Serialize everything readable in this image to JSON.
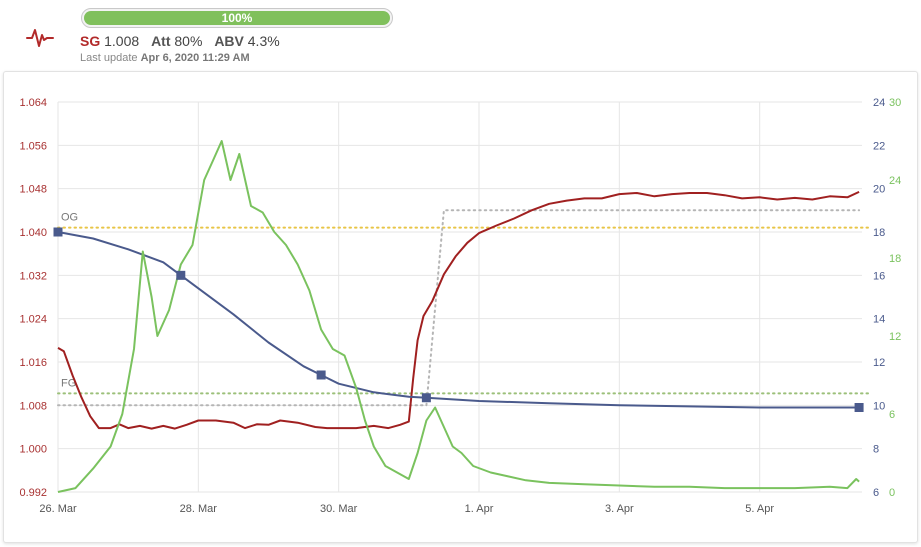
{
  "header": {
    "progress": {
      "label": "100%",
      "value": 1.0,
      "color": "#80c05c"
    },
    "sg": {
      "label": "SG",
      "value": "1.008"
    },
    "att": {
      "label": "Att",
      "value": "80%"
    },
    "abv": {
      "label": "ABV",
      "value": "4.3%"
    },
    "last_update_label": "Last update",
    "last_update_value": "Apr 6, 2020 11:29 AM",
    "logo_icon": "heartbeat-icon"
  },
  "chart_data": {
    "type": "line",
    "x_domain": [
      "2020-03-26T00:00",
      "2020-04-06T11:00"
    ],
    "x_ticks": [
      {
        "date": "2020-03-26",
        "label": "26. Mar"
      },
      {
        "date": "2020-03-28",
        "label": "28. Mar"
      },
      {
        "date": "2020-03-30",
        "label": "30. Mar"
      },
      {
        "date": "2020-04-01",
        "label": "1. Apr"
      },
      {
        "date": "2020-04-03",
        "label": "3. Apr"
      },
      {
        "date": "2020-04-05",
        "label": "5. Apr"
      }
    ],
    "axes": {
      "sg": {
        "side": "left",
        "ylim": [
          0.992,
          1.064
        ],
        "ticks": [
          "0.992",
          "1.000",
          "1.008",
          "1.016",
          "1.024",
          "1.032",
          "1.040",
          "1.048",
          "1.056",
          "1.064"
        ],
        "color": "#a83232"
      },
      "temp": {
        "side": "right",
        "ylim": [
          6,
          24
        ],
        "ticks": [
          "6",
          "8",
          "10",
          "12",
          "14",
          "16",
          "18",
          "20",
          "22",
          "24"
        ],
        "color": "#4a5a8c"
      },
      "green": {
        "side": "right-outer",
        "ylim": [
          0,
          30
        ],
        "ticks": [
          "0",
          "6",
          "12",
          "18",
          "24",
          "30"
        ],
        "color": "#7ac25e"
      }
    },
    "grid": true,
    "reference_lines": [
      {
        "label": "OG",
        "axis": "sg",
        "value": 1.0408,
        "color": "#e8c547",
        "style": "dotted"
      },
      {
        "label": "FG",
        "axis": "sg",
        "value": 1.0102,
        "color": "#9cc07a",
        "style": "dotted"
      }
    ],
    "series": [
      {
        "axis": "sg",
        "color": "#a02020",
        "points": [
          [
            "2020-03-26T00:00",
            1.0186
          ],
          [
            "2020-03-26T02:00",
            1.018
          ],
          [
            "2020-03-26T05:00",
            1.0135
          ],
          [
            "2020-03-26T08:00",
            1.0095
          ],
          [
            "2020-03-26T11:00",
            1.006
          ],
          [
            "2020-03-26T14:00",
            1.0038
          ],
          [
            "2020-03-26T18:00",
            1.0038
          ],
          [
            "2020-03-26T21:00",
            1.0045
          ],
          [
            "2020-03-27T00:00",
            1.0038
          ],
          [
            "2020-03-27T04:00",
            1.0042
          ],
          [
            "2020-03-27T08:00",
            1.0037
          ],
          [
            "2020-03-27T12:00",
            1.0042
          ],
          [
            "2020-03-27T16:00",
            1.0037
          ],
          [
            "2020-03-27T20:00",
            1.0044
          ],
          [
            "2020-03-28T00:00",
            1.0052
          ],
          [
            "2020-03-28T06:00",
            1.0052
          ],
          [
            "2020-03-28T12:00",
            1.0048
          ],
          [
            "2020-03-28T16:00",
            1.0038
          ],
          [
            "2020-03-28T20:00",
            1.0045
          ],
          [
            "2020-03-29T00:00",
            1.0044
          ],
          [
            "2020-03-29T04:00",
            1.0052
          ],
          [
            "2020-03-29T10:00",
            1.0048
          ],
          [
            "2020-03-29T16:00",
            1.004
          ],
          [
            "2020-03-29T20:00",
            1.0038
          ],
          [
            "2020-03-30T00:00",
            1.0038
          ],
          [
            "2020-03-30T06:00",
            1.0038
          ],
          [
            "2020-03-30T12:00",
            1.0042
          ],
          [
            "2020-03-30T17:00",
            1.0038
          ],
          [
            "2020-03-30T21:00",
            1.0044
          ],
          [
            "2020-03-31T00:00",
            1.005
          ],
          [
            "2020-03-31T01:30",
            1.013
          ],
          [
            "2020-03-31T03:00",
            1.02
          ],
          [
            "2020-03-31T05:00",
            1.0245
          ],
          [
            "2020-03-31T08:00",
            1.0272
          ],
          [
            "2020-03-31T12:00",
            1.0322
          ],
          [
            "2020-03-31T16:00",
            1.0355
          ],
          [
            "2020-03-31T20:00",
            1.038
          ],
          [
            "2020-04-01T00:00",
            1.0398
          ],
          [
            "2020-04-01T06:00",
            1.0412
          ],
          [
            "2020-04-01T12:00",
            1.0425
          ],
          [
            "2020-04-01T18:00",
            1.044
          ],
          [
            "2020-04-02T00:00",
            1.0452
          ],
          [
            "2020-04-02T06:00",
            1.0458
          ],
          [
            "2020-04-02T12:00",
            1.0462
          ],
          [
            "2020-04-02T18:00",
            1.0462
          ],
          [
            "2020-04-03T00:00",
            1.047
          ],
          [
            "2020-04-03T06:00",
            1.0472
          ],
          [
            "2020-04-03T12:00",
            1.0466
          ],
          [
            "2020-04-03T18:00",
            1.047
          ],
          [
            "2020-04-04T00:00",
            1.0472
          ],
          [
            "2020-04-04T06:00",
            1.0472
          ],
          [
            "2020-04-04T12:00",
            1.0468
          ],
          [
            "2020-04-04T18:00",
            1.0462
          ],
          [
            "2020-04-05T00:00",
            1.0464
          ],
          [
            "2020-04-05T06:00",
            1.046
          ],
          [
            "2020-04-05T12:00",
            1.0463
          ],
          [
            "2020-04-05T18:00",
            1.046
          ],
          [
            "2020-04-06T00:00",
            1.0466
          ],
          [
            "2020-04-06T06:00",
            1.0464
          ],
          [
            "2020-04-06T10:00",
            1.0474
          ]
        ]
      },
      {
        "axis": "temp",
        "color": "#4a5a8c",
        "points": [
          [
            "2020-03-26T00:00",
            18.0
          ],
          [
            "2020-03-26T12:00",
            17.7
          ],
          [
            "2020-03-27T00:00",
            17.2
          ],
          [
            "2020-03-27T12:00",
            16.6
          ],
          [
            "2020-03-27T18:00",
            16.0
          ],
          [
            "2020-03-28T00:00",
            15.4
          ],
          [
            "2020-03-28T12:00",
            14.2
          ],
          [
            "2020-03-29T00:00",
            12.9
          ],
          [
            "2020-03-29T12:00",
            11.8
          ],
          [
            "2020-03-29T18:00",
            11.4
          ],
          [
            "2020-03-30T00:00",
            11.0
          ],
          [
            "2020-03-30T12:00",
            10.6
          ],
          [
            "2020-03-31T00:00",
            10.4
          ],
          [
            "2020-03-31T06:00",
            10.35
          ],
          [
            "2020-04-01T00:00",
            10.2
          ],
          [
            "2020-04-02T00:00",
            10.1
          ],
          [
            "2020-04-03T00:00",
            10.0
          ],
          [
            "2020-04-04T00:00",
            9.95
          ],
          [
            "2020-04-05T00:00",
            9.9
          ],
          [
            "2020-04-06T10:00",
            9.9
          ]
        ],
        "markers": [
          [
            "2020-03-26T00:00",
            18.0
          ],
          [
            "2020-03-27T18:00",
            16.0
          ],
          [
            "2020-03-29T18:00",
            11.4
          ],
          [
            "2020-03-31T06:00",
            10.35
          ],
          [
            "2020-04-06T10:00",
            9.9
          ]
        ]
      },
      {
        "axis": "green",
        "color": "#7ac25e",
        "points": [
          [
            "2020-03-26T00:00",
            0.0
          ],
          [
            "2020-03-26T06:00",
            0.3
          ],
          [
            "2020-03-26T12:00",
            1.8
          ],
          [
            "2020-03-26T18:00",
            3.5
          ],
          [
            "2020-03-26T22:00",
            6.0
          ],
          [
            "2020-03-27T02:00",
            11.0
          ],
          [
            "2020-03-27T05:00",
            18.5
          ],
          [
            "2020-03-27T08:00",
            15.0
          ],
          [
            "2020-03-27T10:00",
            12.0
          ],
          [
            "2020-03-27T14:00",
            14.0
          ],
          [
            "2020-03-27T18:00",
            17.5
          ],
          [
            "2020-03-27T22:00",
            19.0
          ],
          [
            "2020-03-28T02:00",
            24.0
          ],
          [
            "2020-03-28T05:00",
            25.5
          ],
          [
            "2020-03-28T08:00",
            27.0
          ],
          [
            "2020-03-28T11:00",
            24.0
          ],
          [
            "2020-03-28T14:00",
            26.0
          ],
          [
            "2020-03-28T18:00",
            22.0
          ],
          [
            "2020-03-28T22:00",
            21.5
          ],
          [
            "2020-03-29T02:00",
            20.0
          ],
          [
            "2020-03-29T06:00",
            19.0
          ],
          [
            "2020-03-29T10:00",
            17.5
          ],
          [
            "2020-03-29T14:00",
            15.5
          ],
          [
            "2020-03-29T18:00",
            12.5
          ],
          [
            "2020-03-29T22:00",
            11.0
          ],
          [
            "2020-03-30T02:00",
            10.5
          ],
          [
            "2020-03-30T06:00",
            8.0
          ],
          [
            "2020-03-30T09:00",
            5.5
          ],
          [
            "2020-03-30T12:00",
            3.5
          ],
          [
            "2020-03-30T16:00",
            2.0
          ],
          [
            "2020-03-30T20:00",
            1.5
          ],
          [
            "2020-03-31T00:00",
            1.0
          ],
          [
            "2020-03-31T03:00",
            3.0
          ],
          [
            "2020-03-31T06:00",
            5.5
          ],
          [
            "2020-03-31T09:00",
            6.5
          ],
          [
            "2020-03-31T12:00",
            5.0
          ],
          [
            "2020-03-31T15:00",
            3.5
          ],
          [
            "2020-03-31T18:00",
            3.0
          ],
          [
            "2020-03-31T22:00",
            2.0
          ],
          [
            "2020-04-01T04:00",
            1.5
          ],
          [
            "2020-04-01T10:00",
            1.2
          ],
          [
            "2020-04-01T16:00",
            0.9
          ],
          [
            "2020-04-02T00:00",
            0.7
          ],
          [
            "2020-04-02T12:00",
            0.6
          ],
          [
            "2020-04-03T00:00",
            0.5
          ],
          [
            "2020-04-03T12:00",
            0.4
          ],
          [
            "2020-04-04T00:00",
            0.4
          ],
          [
            "2020-04-04T12:00",
            0.3
          ],
          [
            "2020-04-05T00:00",
            0.3
          ],
          [
            "2020-04-05T12:00",
            0.3
          ],
          [
            "2020-04-06T00:00",
            0.4
          ],
          [
            "2020-04-06T06:00",
            0.3
          ],
          [
            "2020-04-06T09:00",
            1.0
          ],
          [
            "2020-04-06T10:00",
            0.8
          ]
        ]
      },
      {
        "axis": "temp",
        "color": "#b5b5b5",
        "style": "dotted",
        "points": [
          [
            "2020-03-26T00:00",
            10.0
          ],
          [
            "2020-03-31T06:00",
            10.0
          ],
          [
            "2020-03-31T12:00",
            19.0
          ],
          [
            "2020-04-06T10:00",
            19.0
          ]
        ]
      }
    ]
  }
}
